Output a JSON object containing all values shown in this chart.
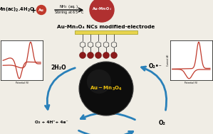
{
  "bg_color": "#f0ede5",
  "title_text": "Au-Mn₃O₄ NCs modified-electrode",
  "left_top": "2H₂O",
  "left_bottom": "O₂ + 4H⁺+ 4e⁻",
  "right_top": "O₂•⁻",
  "right_bottom": "O₂",
  "left_cv_color": "#c0392b",
  "right_cv_color": "#c0392b",
  "arrow_color": "#2980b9",
  "electrode_color": "#e8d44d",
  "nanoparticle_color": "#8b1a1a",
  "product_circle_color": "#b03030",
  "au_circle_color": "#c0392b",
  "center_label_color": "#f1c40f",
  "sphere_color": "#111111"
}
